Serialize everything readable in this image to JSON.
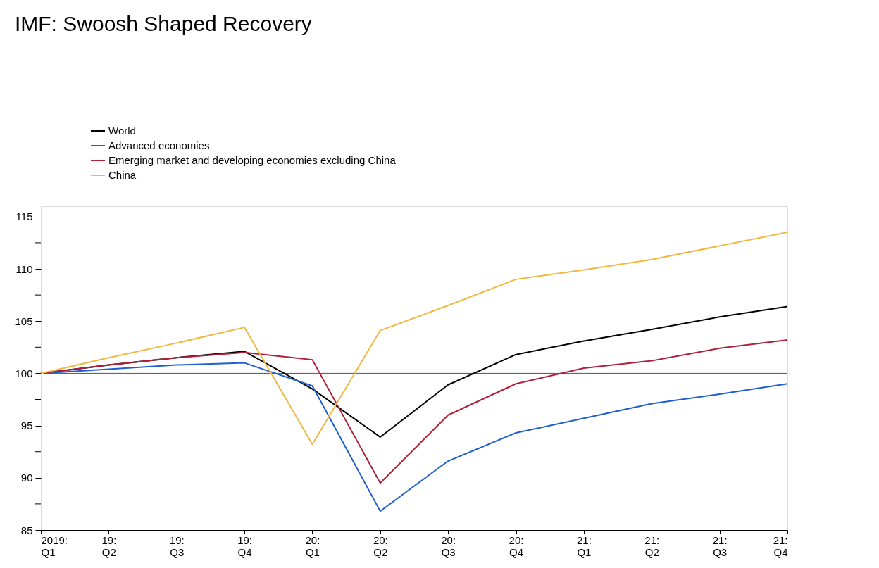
{
  "chart_data": {
    "type": "line",
    "title": "IMF: Swoosh Shaped Recovery",
    "categories": [
      "2019:\nQ1",
      "19:\nQ2",
      "19:\nQ3",
      "19:\nQ4",
      "20:\nQ1",
      "20:\nQ2",
      "20:\nQ3",
      "20:\nQ4",
      "21:\nQ1",
      "21:\nQ2",
      "21:\nQ3",
      "21:\nQ4"
    ],
    "series": [
      {
        "name": "World",
        "color": "#000000",
        "values": [
          100,
          100.8,
          101.5,
          102.1,
          98.5,
          93.9,
          98.9,
          101.8,
          103.1,
          104.2,
          105.4,
          106.4
        ]
      },
      {
        "name": "Advanced economies",
        "color": "#1f5fd0",
        "values": [
          100,
          100.4,
          100.8,
          101.0,
          98.8,
          86.8,
          91.6,
          94.3,
          95.7,
          97.1,
          98.0,
          99.0
        ]
      },
      {
        "name": "Emerging market and developing economies excluding China",
        "color": "#b0203a",
        "values": [
          100,
          100.8,
          101.5,
          102.0,
          101.3,
          89.5,
          96.0,
          99.0,
          100.5,
          101.2,
          102.4,
          103.2
        ]
      },
      {
        "name": "China",
        "color": "#f0b840",
        "values": [
          100,
          101.5,
          102.9,
          104.4,
          93.2,
          104.1,
          106.5,
          109.0,
          109.9,
          110.9,
          112.2,
          113.5
        ]
      }
    ],
    "ylim": [
      85,
      116
    ],
    "yticks": [
      85,
      {
        "value": 87.5,
        "label": null
      },
      90,
      {
        "value": 92.5,
        "label": null
      },
      95,
      {
        "value": 97.5,
        "label": null
      },
      100,
      {
        "value": 102.5,
        "label": null
      },
      105,
      {
        "value": 107.5,
        "label": null
      },
      110,
      {
        "value": 112.5,
        "label": null
      },
      115
    ],
    "ref_lines": [
      {
        "axis": "y",
        "value": 100,
        "color": "#555555"
      }
    ],
    "grid": false,
    "legend": "top left",
    "line_style": "solid",
    "marker": "none"
  }
}
